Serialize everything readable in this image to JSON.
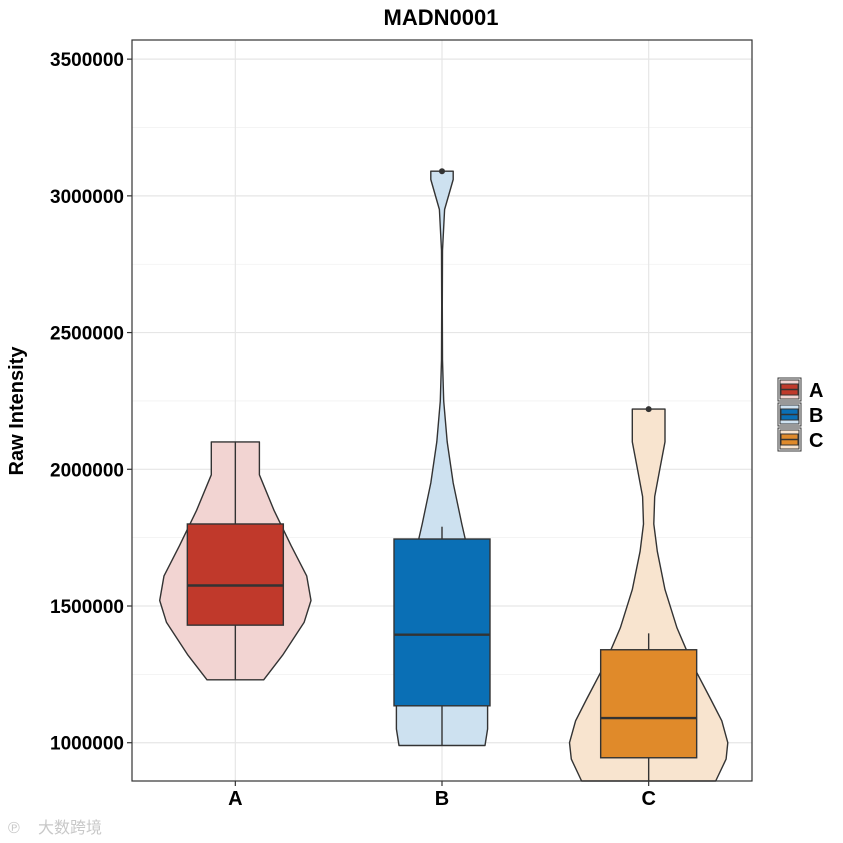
{
  "chart_data": {
    "type": "violin",
    "title": "MADN0001",
    "xlabel": "",
    "ylabel": "Raw Intensity",
    "categories": [
      "A",
      "B",
      "C"
    ],
    "ylim": [
      860000,
      3570000
    ],
    "yticks": [
      1000000,
      1500000,
      2000000,
      2500000,
      3000000,
      3500000
    ],
    "ytick_labels": [
      "1000000",
      "1500000",
      "2000000",
      "2500000",
      "3000000",
      "3500000"
    ],
    "grid": true,
    "legend_position": "right",
    "series": [
      {
        "name": "A",
        "box_color": "#c0392b",
        "violin_color": "#f2d4d2",
        "violin_range": [
          1230000,
          2100000
        ],
        "violin_profile": [
          [
            1230000,
            0.33
          ],
          [
            1320000,
            0.55
          ],
          [
            1440000,
            0.8
          ],
          [
            1520000,
            0.88
          ],
          [
            1610000,
            0.83
          ],
          [
            1720000,
            0.65
          ],
          [
            1850000,
            0.45
          ],
          [
            1980000,
            0.28
          ],
          [
            2100000,
            0.28
          ]
        ],
        "box": {
          "whisker_low": 1230000,
          "q1": 1430000,
          "median": 1575000,
          "q3": 1800000,
          "whisker_high": 2100000
        },
        "outliers": []
      },
      {
        "name": "B",
        "box_color": "#0a6fb5",
        "violin_color": "#cde1f0",
        "violin_range": [
          990000,
          3090000
        ],
        "violin_profile": [
          [
            990000,
            0.5
          ],
          [
            1050000,
            0.53
          ],
          [
            1150000,
            0.53
          ],
          [
            1260000,
            0.46
          ],
          [
            1380000,
            0.42
          ],
          [
            1500000,
            0.4
          ],
          [
            1650000,
            0.34
          ],
          [
            1800000,
            0.23
          ],
          [
            1950000,
            0.13
          ],
          [
            2100000,
            0.06
          ],
          [
            2250000,
            0.02
          ],
          [
            2400000,
            0.006
          ],
          [
            2600000,
            0.003
          ],
          [
            2800000,
            0.006
          ],
          [
            2950000,
            0.03
          ],
          [
            3060000,
            0.13
          ],
          [
            3090000,
            0.13
          ]
        ],
        "box": {
          "whisker_low": 990000,
          "q1": 1135000,
          "median": 1395000,
          "q3": 1745000,
          "whisker_high": 1790000
        },
        "outliers": [
          3090000
        ]
      },
      {
        "name": "C",
        "box_color": "#e08a2a",
        "violin_color": "#f8e4cf",
        "violin_range": [
          860000,
          2220000
        ],
        "violin_profile": [
          [
            860000,
            0.78
          ],
          [
            940000,
            0.9
          ],
          [
            1000000,
            0.92
          ],
          [
            1080000,
            0.85
          ],
          [
            1160000,
            0.72
          ],
          [
            1280000,
            0.52
          ],
          [
            1420000,
            0.33
          ],
          [
            1560000,
            0.19
          ],
          [
            1700000,
            0.1
          ],
          [
            1800000,
            0.06
          ],
          [
            1900000,
            0.07
          ],
          [
            2000000,
            0.13
          ],
          [
            2100000,
            0.19
          ],
          [
            2180000,
            0.19
          ],
          [
            2220000,
            0.19
          ]
        ],
        "box": {
          "whisker_low": 860000,
          "q1": 945000,
          "median": 1090000,
          "q3": 1340000,
          "whisker_high": 1400000
        },
        "outliers": [
          2220000
        ]
      }
    ]
  },
  "watermark": {
    "text": "大数跨境"
  }
}
